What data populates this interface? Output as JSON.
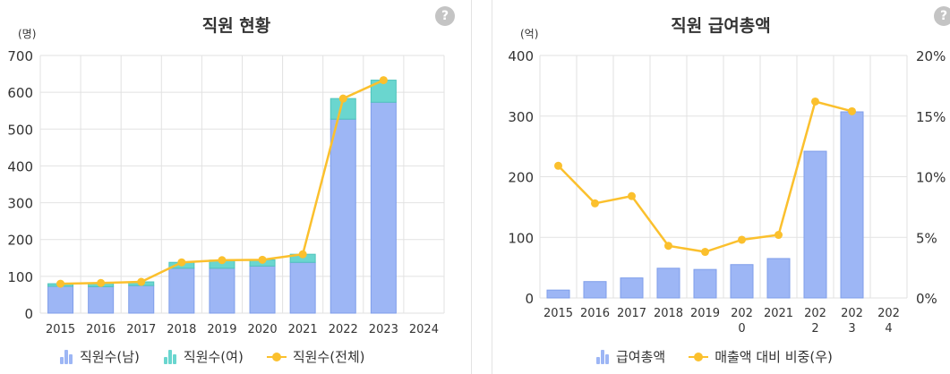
{
  "left": {
    "title": "직원 현황",
    "unit": "(명)",
    "help": "?",
    "legend": [
      "직원수(남)",
      "직원수(여)",
      "직원수(전체)"
    ]
  },
  "right": {
    "title": "직원 급여총액",
    "unit": "(억)",
    "help": "?",
    "legend": [
      "급여총액",
      "매출액 대비 비중(우)"
    ]
  },
  "colors": {
    "bar_male": "#9db6f5",
    "bar_female": "#6ad6cf",
    "line": "#fbc02d",
    "bar_salary": "#9db6f5"
  },
  "chart_data": [
    {
      "type": "bar",
      "stacked": true,
      "title": "직원 현황",
      "ylabel": "(명)",
      "categories": [
        "2015",
        "2016",
        "2017",
        "2018",
        "2019",
        "2020",
        "2021",
        "2022",
        "2023",
        "2024"
      ],
      "ylim": [
        0,
        700
      ],
      "yticks": [
        0,
        100,
        200,
        300,
        400,
        500,
        600,
        700
      ],
      "series": [
        {
          "name": "직원수(남)",
          "type": "bar",
          "values": [
            73,
            72,
            75,
            122,
            122,
            128,
            138,
            527,
            573,
            null
          ]
        },
        {
          "name": "직원수(여)",
          "type": "bar",
          "values": [
            7,
            10,
            10,
            16,
            22,
            17,
            22,
            56,
            60,
            null
          ]
        },
        {
          "name": "직원수(전체)",
          "type": "line",
          "values": [
            80,
            82,
            85,
            138,
            144,
            145,
            160,
            583,
            633,
            null
          ]
        }
      ],
      "grid": true,
      "legend": "bottom"
    },
    {
      "type": "bar",
      "title": "직원 급여총액",
      "ylabel": "(억)",
      "categories": [
        "2015",
        "2016",
        "2017",
        "2018",
        "2019",
        "2020",
        "2021",
        "2022",
        "2023",
        "2024"
      ],
      "ylim": [
        0,
        400
      ],
      "yticks": [
        0,
        100,
        200,
        300,
        400
      ],
      "y2lim": [
        0,
        20
      ],
      "y2ticks": [
        "0%",
        "5%",
        "10%",
        "15%",
        "20%"
      ],
      "series": [
        {
          "name": "급여총액",
          "type": "bar",
          "axis": "left",
          "values": [
            13,
            27,
            33,
            49,
            47,
            55,
            65,
            242,
            307,
            null
          ]
        },
        {
          "name": "매출액 대비 비중(우)",
          "type": "line",
          "axis": "right",
          "values": [
            10.9,
            7.8,
            8.4,
            4.3,
            3.8,
            4.8,
            5.2,
            16.2,
            15.4,
            null
          ]
        }
      ],
      "grid": true,
      "legend": "bottom"
    }
  ]
}
